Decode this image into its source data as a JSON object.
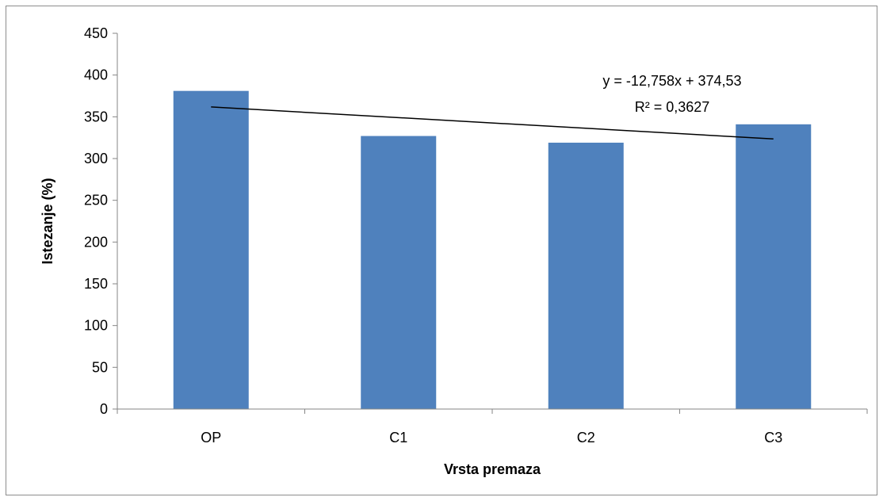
{
  "chart_data": {
    "type": "bar",
    "categories": [
      "OP",
      "C1",
      "C2",
      "C3"
    ],
    "values": [
      381,
      327,
      319,
      341
    ],
    "xlabel": "Vrsta premaza",
    "ylabel": "Istezanje (%)",
    "ylim": [
      0,
      450
    ],
    "yticks": [
      0,
      50,
      100,
      150,
      200,
      250,
      300,
      350,
      400,
      450
    ],
    "yticks_text": [
      "0",
      "50",
      "100",
      "150",
      "200",
      "250",
      "300",
      "350",
      "400",
      "450"
    ],
    "bar_color": "#4f81bd",
    "grid": false,
    "legend": "none",
    "trendline": {
      "type": "linear",
      "slope": -12.758,
      "intercept": 374.53,
      "equation": "y = -12,758x + 374,53",
      "r_squared": "R² = 0,3627",
      "color": "#000000"
    }
  }
}
